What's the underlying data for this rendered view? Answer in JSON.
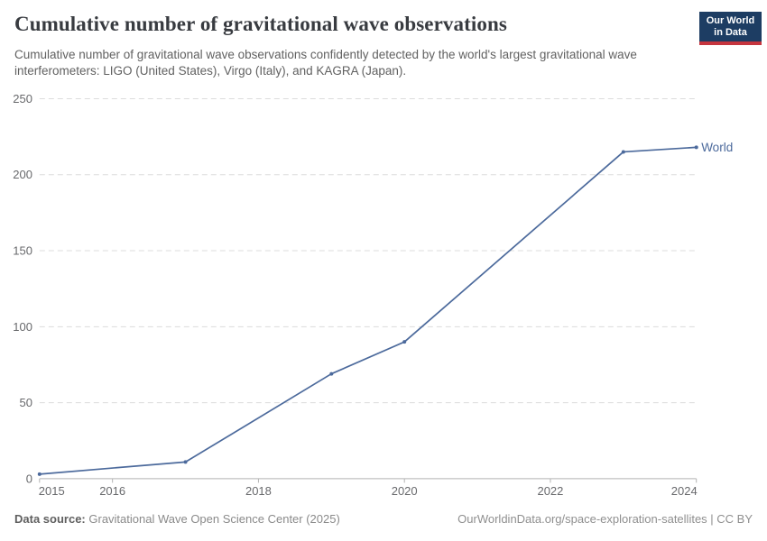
{
  "header": {
    "title": "Cumulative number of gravitational wave observations",
    "subtitle": "Cumulative number of gravitational wave observations confidently detected by the world's largest gravitational wave interferometers: LIGO (United States), Virgo (Italy), and KAGRA (Japan).",
    "logo": {
      "line1": "Our World",
      "line2": "in Data"
    }
  },
  "chart_data": {
    "type": "line",
    "title": "Cumulative number of gravitational wave observations",
    "xlabel": "",
    "ylabel": "",
    "xlim": [
      2015,
      2024
    ],
    "ylim": [
      0,
      250
    ],
    "x_ticks": [
      2015,
      2016,
      2018,
      2020,
      2022,
      2024
    ],
    "y_ticks": [
      0,
      50,
      100,
      150,
      200,
      250
    ],
    "grid": "horizontal-dashed",
    "legend_position": "end-of-line",
    "series": [
      {
        "name": "World",
        "color": "#4C6A9C",
        "x": [
          2015,
          2017,
          2019,
          2020,
          2023,
          2024
        ],
        "values": [
          3,
          11,
          69,
          90,
          215,
          218
        ]
      }
    ]
  },
  "footer": {
    "source_label": "Data source:",
    "source_value": "Gravitational Wave Open Science Center (2025)",
    "attribution": "OurWorldinData.org/space-exploration-satellites | CC BY"
  },
  "colors": {
    "line": "#4C6A9C",
    "grid": "#dcdcdc",
    "axis": "#b3b3b3",
    "tick_label": "#68696c",
    "logo_bg": "#1d3d63",
    "logo_bar": "#c5353e"
  }
}
